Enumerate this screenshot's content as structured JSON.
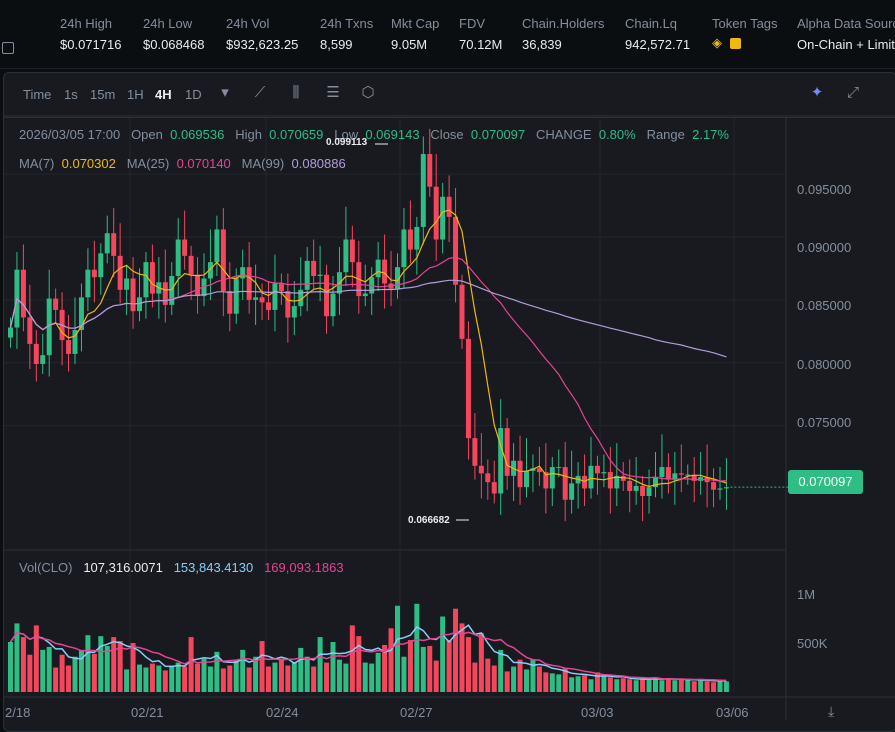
{
  "stats": [
    {
      "label": "24h High",
      "value": "$0.071716"
    },
    {
      "label": "24h Low",
      "value": "$0.068468"
    },
    {
      "label": "24h Vol",
      "value": "$932,623.25"
    },
    {
      "label": "24h Txns",
      "value": "8,599"
    },
    {
      "label": "Mkt Cap",
      "value": "9.05M"
    },
    {
      "label": "FDV",
      "value": "70.12M"
    },
    {
      "label": "Chain.Holders",
      "value": "36,839"
    },
    {
      "label": "Chain.Lq",
      "value": "942,572.71"
    },
    {
      "label": "Token Tags",
      "value": ""
    },
    {
      "label": "Alpha Data Source",
      "value": "On-Chain + Limit"
    }
  ],
  "toolbar": {
    "time": "Time",
    "i1s": "1s",
    "i15m": "15m",
    "i1h": "1H",
    "i4h": "4H",
    "i1d": "1D"
  },
  "ohlc": {
    "date": "2026/03/05 17:00",
    "open_label": "Open",
    "open": "0.069536",
    "high_label": "High",
    "high": "0.070659",
    "low_label": "Low",
    "low": "0.069143",
    "close_label": "Close",
    "close": "0.070097",
    "change_label": "CHANGE",
    "change": "0.80%",
    "range_label": "Range",
    "range": "2.17%"
  },
  "ma": {
    "ma7_label": "MA(7)",
    "ma7": "0.070302",
    "ma25_label": "MA(25)",
    "ma25": "0.070140",
    "ma99_label": "MA(99)",
    "ma99": "0.080886"
  },
  "vol": {
    "label": "Vol(CLO)",
    "v1": "107,316.0071",
    "v2": "153,843.4130",
    "v3": "169,093.1863"
  },
  "price_tag": "0.070097",
  "annotations": {
    "high": "0.099113",
    "low": "0.066682"
  },
  "colors": {
    "up": "#2ebd85",
    "down": "#f6465d",
    "ma7": "#f0b90b",
    "ma25": "#e84393",
    "ma99": "#b39ddb",
    "vol_ma1": "#87cefa",
    "vol_ma2": "#e84393"
  },
  "chart_data": {
    "type": "candlestick",
    "y_ticks": [
      "0.095000",
      "0.090000",
      "0.085000",
      "0.080000",
      "0.075000"
    ],
    "y_ticks_values": [
      0.095,
      0.09,
      0.085,
      0.08,
      0.075
    ],
    "x_ticks": [
      "2/18",
      "02/21",
      "02/24",
      "02/27",
      "03/03",
      "03/06"
    ],
    "vol_ticks": [
      "1M",
      "500K"
    ],
    "ylim": [
      0.0655,
      0.1005
    ],
    "close": [
      0.0828,
      0.0874,
      0.0836,
      0.0815,
      0.0799,
      0.0806,
      0.0851,
      0.0842,
      0.0818,
      0.0807,
      0.0826,
      0.0852,
      0.0874,
      0.0868,
      0.0887,
      0.0903,
      0.0885,
      0.0858,
      0.0867,
      0.0841,
      0.0852,
      0.088,
      0.0855,
      0.0864,
      0.0846,
      0.0869,
      0.0898,
      0.0885,
      0.087,
      0.0853,
      0.0867,
      0.088,
      0.0906,
      0.0857,
      0.0839,
      0.0867,
      0.0876,
      0.085,
      0.0852,
      0.0848,
      0.0842,
      0.0863,
      0.0857,
      0.0836,
      0.0845,
      0.0858,
      0.0881,
      0.0869,
      0.087,
      0.0837,
      0.0855,
      0.0872,
      0.0898,
      0.088,
      0.0853,
      0.0855,
      0.0868,
      0.0882,
      0.0863,
      0.0859,
      0.0876,
      0.0906,
      0.089,
      0.0908,
      0.0966,
      0.094,
      0.0898,
      0.0932,
      0.0916,
      0.0862,
      0.0819,
      0.074,
      0.0718,
      0.0712,
      0.0705,
      0.0696,
      0.0748,
      0.071,
      0.0722,
      0.0701,
      0.0714,
      0.0716,
      0.0713,
      0.07,
      0.0717,
      0.0717,
      0.0691,
      0.0704,
      0.071,
      0.07,
      0.0718,
      0.0712,
      0.0713,
      0.07,
      0.071,
      0.0706,
      0.0698,
      0.0702,
      0.0694,
      0.0701,
      0.0709,
      0.0717,
      0.0707,
      0.0712,
      0.0711,
      0.0711,
      0.0706,
      0.0709,
      0.0705,
      0.0699,
      0.07,
      0.0701
    ],
    "vol": [
      510000,
      700000,
      560000,
      380000,
      680000,
      430000,
      460000,
      250000,
      380000,
      270000,
      360000,
      430000,
      580000,
      390000,
      570000,
      470000,
      560000,
      520000,
      230000,
      500000,
      280000,
      250000,
      290000,
      270000,
      220000,
      270000,
      300000,
      260000,
      560000,
      290000,
      340000,
      260000,
      410000,
      240000,
      270000,
      330000,
      430000,
      250000,
      360000,
      520000,
      260000,
      300000,
      340000,
      270000,
      300000,
      450000,
      360000,
      260000,
      560000,
      300000,
      510000,
      330000,
      290000,
      680000,
      570000,
      300000,
      290000,
      400000,
      480000,
      650000,
      880000,
      360000,
      530000,
      900000,
      460000,
      470000,
      320000,
      770000,
      530000,
      850000,
      700000,
      560000,
      300000,
      600000,
      340000,
      270000,
      430000,
      210000,
      260000,
      330000,
      230000,
      330000,
      260000,
      200000,
      190000,
      180000,
      240000,
      150000,
      160000,
      170000,
      130000,
      200000,
      160000,
      150000,
      130000,
      140000,
      130000,
      120000,
      140000,
      130000,
      150000,
      120000,
      140000,
      120000,
      130000,
      120000,
      110000,
      130000,
      110000,
      100000,
      120000,
      107316
    ]
  }
}
